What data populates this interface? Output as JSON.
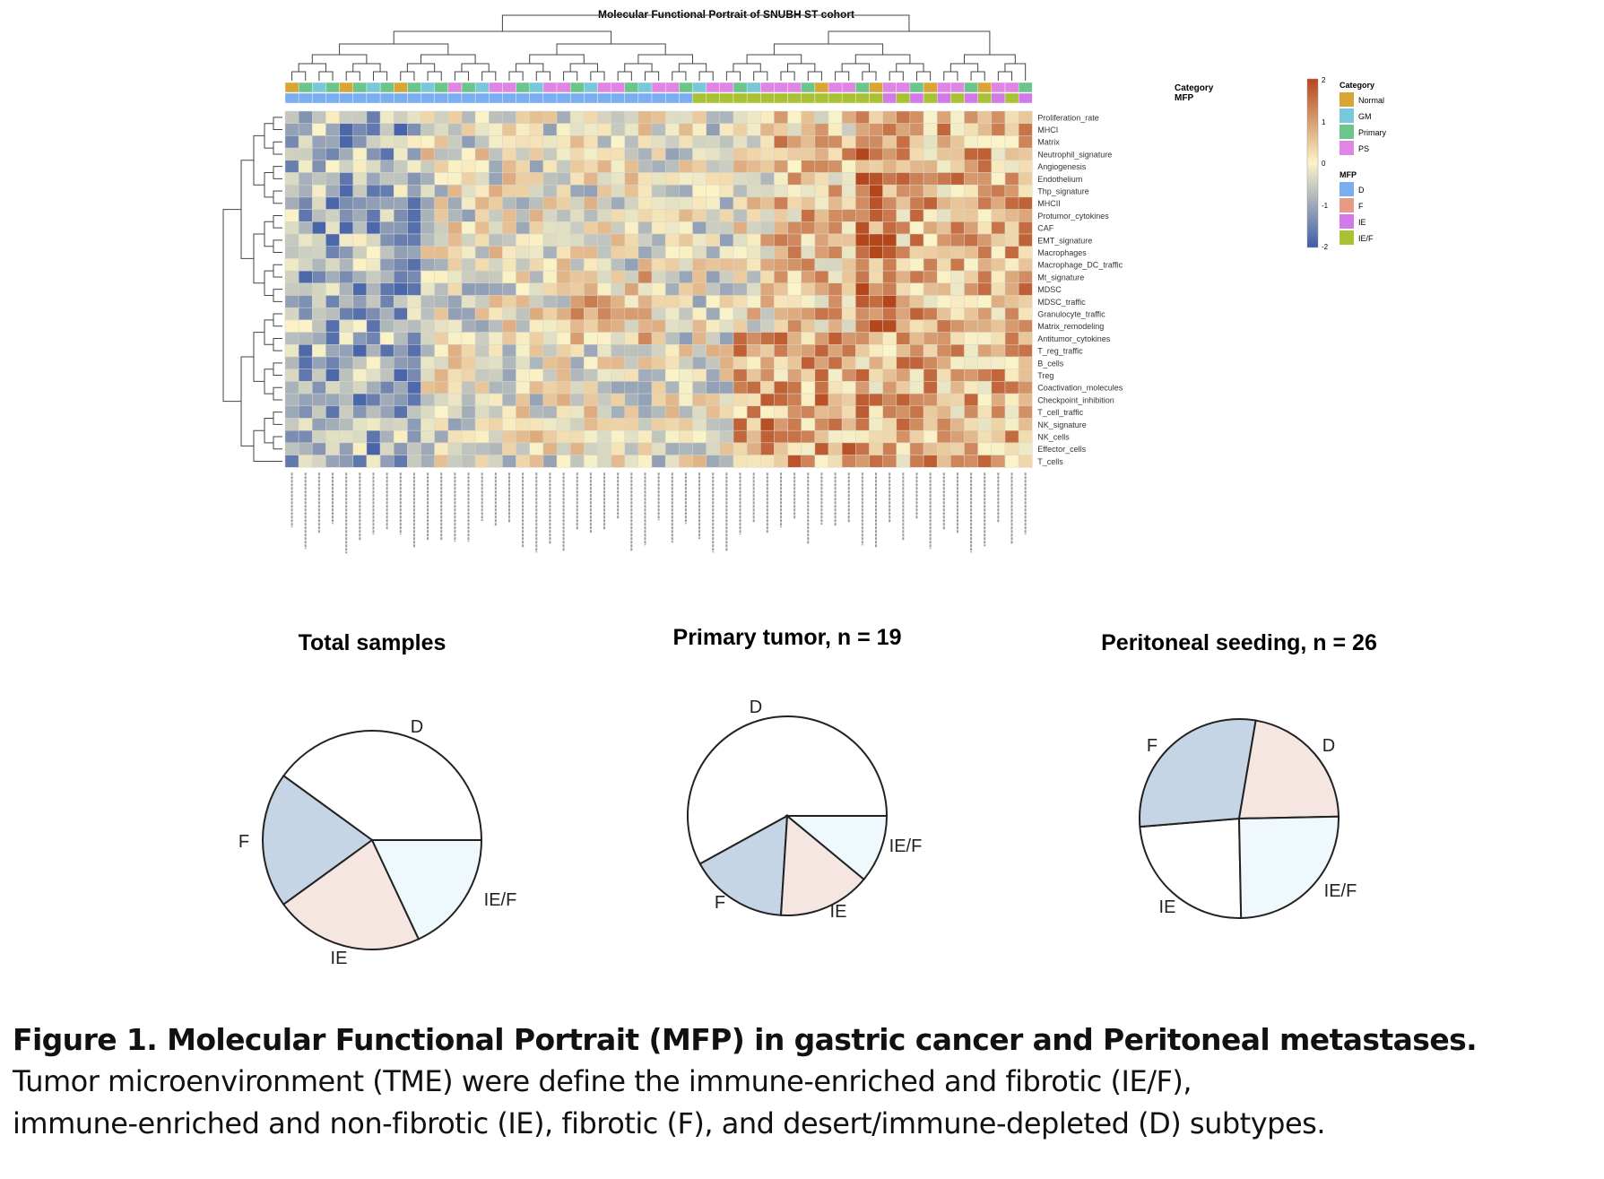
{
  "heatmap": {
    "title": "Molecular Functional Portrait of SNUBH ST cohort",
    "annotation_rows": [
      "Category",
      "MFP"
    ],
    "features": [
      "Proliferation_rate",
      "MHCI",
      "Matrix",
      "Neutrophil_signature",
      "Angiogenesis",
      "Endothelium",
      "Thp_signature",
      "MHCII",
      "Protumor_cytokines",
      "CAF",
      "EMT_signature",
      "Macrophages",
      "Macrophage_DC_traffic",
      "Mt_signature",
      "MDSC",
      "MDSC_traffic",
      "Granulocyte_traffic",
      "Matrix_remodeling",
      "Antitumor_cytokines",
      "T_reg_traffic",
      "B_cells",
      "Treg",
      "Coactivation_molecules",
      "Checkpoint_inhibition",
      "T_cell_traffic",
      "NK_signature",
      "NK_cells",
      "Effector_cells",
      "T_cells"
    ],
    "colors": {
      "high": "#b5461b",
      "mid": "#fbf4c8",
      "low": "#3e5da8"
    }
  },
  "legend": {
    "scale_ticks": [
      "2",
      "1",
      "0",
      "-1",
      "-2"
    ],
    "category": {
      "title": "Category",
      "items": [
        {
          "label": "Normal",
          "color": "#d9a636"
        },
        {
          "label": "GM",
          "color": "#79c8d9"
        },
        {
          "label": "Primary",
          "color": "#6cc58a"
        },
        {
          "label": "PS",
          "color": "#df86e5"
        }
      ]
    },
    "mfp": {
      "title": "MFP",
      "items": [
        {
          "label": "D",
          "color": "#7aaef0"
        },
        {
          "label": "F",
          "color": "#e79a86"
        },
        {
          "label": "IE",
          "color": "#d27be8"
        },
        {
          "label": "IE/F",
          "color": "#a9c233"
        }
      ]
    }
  },
  "chart_data": [
    {
      "type": "pie",
      "title": "Total samples",
      "slices": [
        {
          "label": "D",
          "value": 40,
          "color": "#ffffff"
        },
        {
          "label": "F",
          "value": 20,
          "color": "#c5d5e6"
        },
        {
          "label": "IE",
          "value": 22,
          "color": "#f5e6e1"
        },
        {
          "label": "IE/F",
          "value": 18,
          "color": "#eff8fc"
        }
      ]
    },
    {
      "type": "pie",
      "title": "Primary tumor, n = 19",
      "slices": [
        {
          "label": "D",
          "value": 58,
          "color": "#ffffff"
        },
        {
          "label": "F",
          "value": 16,
          "color": "#c5d5e6"
        },
        {
          "label": "IE",
          "value": 15,
          "color": "#f5e6e1"
        },
        {
          "label": "IE/F",
          "value": 11,
          "color": "#eff8fc"
        }
      ]
    },
    {
      "type": "pie",
      "title": "Peritoneal seeding, n = 26",
      "slices": [
        {
          "label": "D",
          "value": 24,
          "color": "#ffffff"
        },
        {
          "label": "F",
          "value": 29,
          "color": "#c5d5e6"
        },
        {
          "label": "IE",
          "value": 22,
          "color": "#f5e6e1"
        },
        {
          "label": "IE/F",
          "value": 25,
          "color": "#eff8fc"
        }
      ]
    }
  ],
  "caption": {
    "title": "Figure 1. Molecular Functional Portrait (MFP) in gastric cancer and Peritoneal metastases.",
    "line1": "Tumor microenvironment (TME) were define the immune-enriched and fibrotic (IE/F),",
    "line2": "immune-enriched and non-fibrotic (IE), fibrotic (F), and desert/immune-depleted (D) subtypes."
  }
}
